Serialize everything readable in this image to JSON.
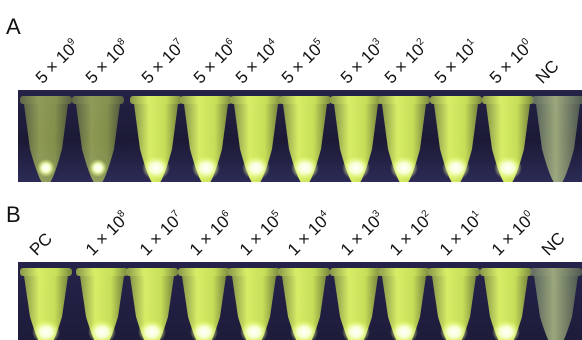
{
  "panel_a": {
    "letter": "A",
    "labels": [
      {
        "coef": "5",
        "exp": "9"
      },
      {
        "coef": "5",
        "exp": "8"
      },
      {
        "coef": "5",
        "exp": "7"
      },
      {
        "coef": "5",
        "exp": "6"
      },
      {
        "coef": "5",
        "exp": "4"
      },
      {
        "coef": "5",
        "exp": "5"
      },
      {
        "coef": "5",
        "exp": "3"
      },
      {
        "coef": "5",
        "exp": "2"
      },
      {
        "coef": "5",
        "exp": "1"
      },
      {
        "coef": "5",
        "exp": "0"
      },
      {
        "text": "NC"
      }
    ]
  },
  "panel_b": {
    "letter": "B",
    "labels": [
      {
        "text": "PC"
      },
      {
        "coef": "1",
        "exp": "8"
      },
      {
        "coef": "1",
        "exp": "7"
      },
      {
        "coef": "1",
        "exp": "6"
      },
      {
        "coef": "1",
        "exp": "5"
      },
      {
        "coef": "1",
        "exp": "4"
      },
      {
        "coef": "1",
        "exp": "3"
      },
      {
        "coef": "1",
        "exp": "2"
      },
      {
        "coef": "1",
        "exp": "1"
      },
      {
        "coef": "1",
        "exp": "0"
      },
      {
        "text": "NC"
      }
    ]
  },
  "times_sign": "×",
  "colors": {
    "tube_bright": "#e8ff6a",
    "tube_dim": "#b9c98a",
    "glow": "#f6ffd0",
    "background": "#1c1b3a"
  }
}
